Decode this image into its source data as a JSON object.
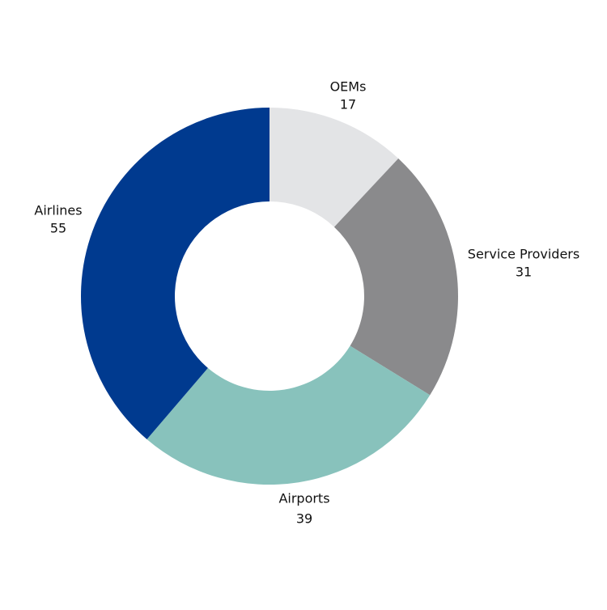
{
  "chart_data": {
    "type": "donut",
    "categories": [
      "OEMs",
      "Service Providers",
      "Airports",
      "Airlines"
    ],
    "values": [
      17,
      31,
      39,
      55
    ],
    "colors": [
      "#e3e4e6",
      "#8a8a8c",
      "#88c2bc",
      "#003a8f"
    ]
  }
}
